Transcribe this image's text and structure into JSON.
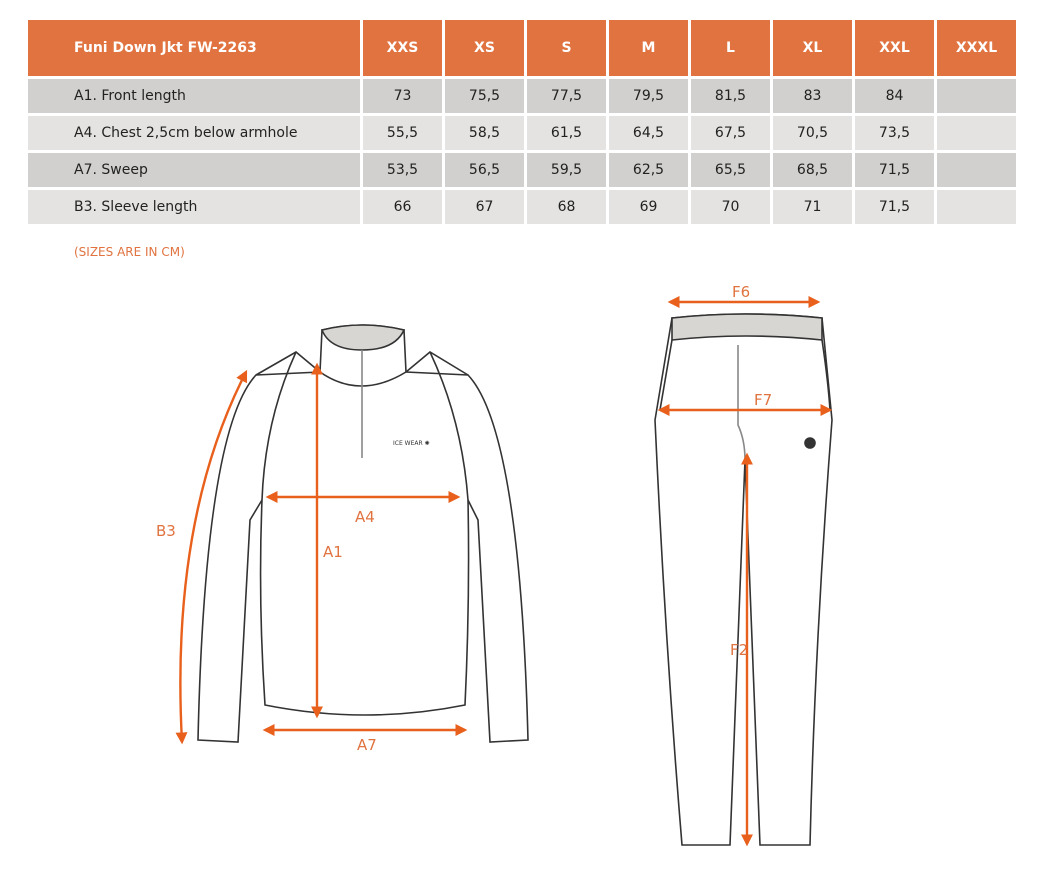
{
  "table": {
    "title": "Funi Down Jkt FW-2263",
    "sizes": [
      "XXS",
      "XS",
      "S",
      "M",
      "L",
      "XL",
      "XXL",
      "XXXL"
    ],
    "rows": [
      {
        "label": "A1. Front length",
        "values": [
          "73",
          "75,5",
          "77,5",
          "79,5",
          "81,5",
          "83",
          "84",
          ""
        ]
      },
      {
        "label": "A4. Chest 2,5cm below armhole",
        "values": [
          "55,5",
          "58,5",
          "61,5",
          "64,5",
          "67,5",
          "70,5",
          "73,5",
          ""
        ]
      },
      {
        "label": "A7. Sweep",
        "values": [
          "53,5",
          "56,5",
          "59,5",
          "62,5",
          "65,5",
          "68,5",
          "71,5",
          ""
        ]
      },
      {
        "label": "B3. Sleeve length",
        "values": [
          "66",
          "67",
          "68",
          "69",
          "70",
          "71",
          "71,5",
          ""
        ]
      }
    ]
  },
  "note": "(SIZES ARE IN CM)",
  "diagram": {
    "jacket_labels": {
      "a1": "A1",
      "a4": "A4",
      "a7": "A7",
      "b3": "B3"
    },
    "pants_labels": {
      "f2": "F2",
      "f6": "F6",
      "f7": "F7"
    },
    "logo": "ICE WEAR"
  },
  "colors": {
    "accent": "#e07340",
    "row_dark": "#d1d0ce",
    "row_light": "#e4e3e1"
  }
}
